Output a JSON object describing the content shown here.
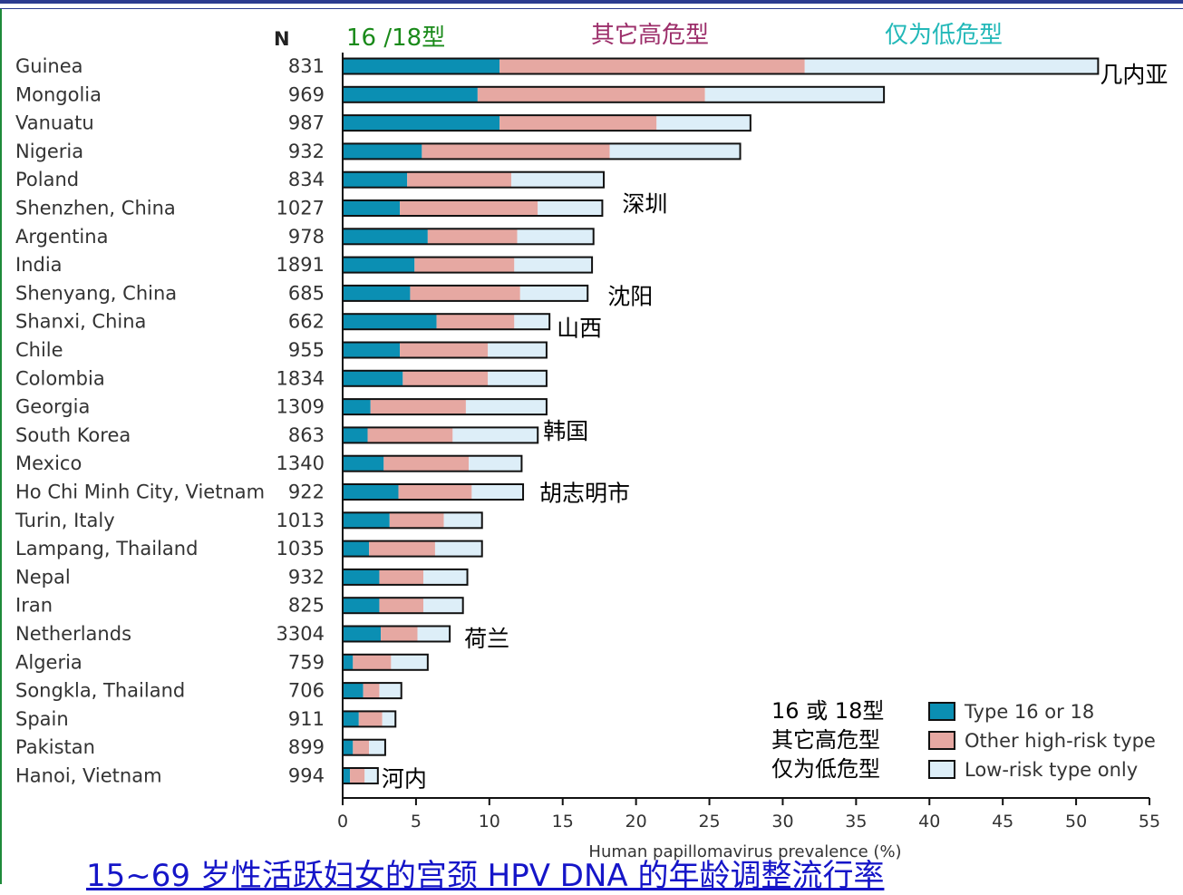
{
  "chart_data": {
    "type": "bar",
    "stacked": true,
    "orientation": "horizontal",
    "xlabel": "Human papillomavirus prevalence (%)",
    "xlim": [
      0,
      55
    ],
    "xticks": [
      0,
      5,
      10,
      15,
      20,
      25,
      30,
      35,
      40,
      45,
      50,
      55
    ],
    "n_header": "N",
    "categories": [
      "Guinea",
      "Mongolia",
      "Vanuatu",
      "Nigeria",
      "Poland",
      "Shenzhen, China",
      "Argentina",
      "India",
      "Shenyang, China",
      "Shanxi, China",
      "Chile",
      "Colombia",
      "Georgia",
      "South Korea",
      "Mexico",
      "Ho Chi Minh City, Vietnam",
      "Turin, Italy",
      "Lampang, Thailand",
      "Nepal",
      "Iran",
      "Netherlands",
      "Algeria",
      "Songkla, Thailand",
      "Spain",
      "Pakistan",
      "Hanoi, Vietnam"
    ],
    "n_values": [
      "831",
      "969",
      "987",
      "932",
      "834",
      "1027",
      "978",
      "1891",
      "685",
      "662",
      "955",
      "1834",
      "1309",
      "863",
      "1340",
      "922",
      "1013",
      "1035",
      "932",
      "825",
      "3304",
      "759",
      "706",
      "911",
      "899",
      "994"
    ],
    "series": [
      {
        "name": "Type 16 or 18",
        "color": "#0b8fb3",
        "values": [
          10.7,
          9.2,
          10.7,
          5.4,
          4.4,
          3.9,
          5.8,
          4.9,
          4.6,
          6.4,
          3.9,
          4.1,
          1.9,
          1.7,
          2.8,
          3.8,
          3.2,
          1.8,
          2.5,
          2.5,
          2.6,
          0.7,
          1.4,
          1.1,
          0.7,
          0.5
        ]
      },
      {
        "name": "Other high-risk type",
        "color": "#e6a8a2",
        "values": [
          20.8,
          15.5,
          10.7,
          12.8,
          7.1,
          9.4,
          6.1,
          6.8,
          7.5,
          5.3,
          6.0,
          5.8,
          6.5,
          5.8,
          5.8,
          5.0,
          3.7,
          4.5,
          3.0,
          3.0,
          2.5,
          2.6,
          1.1,
          1.6,
          1.1,
          1.0
        ]
      },
      {
        "name": "Low-risk type only",
        "color": "#ddeef8",
        "values": [
          20.0,
          12.2,
          6.4,
          8.9,
          6.3,
          4.4,
          5.2,
          5.3,
          4.6,
          2.4,
          4.0,
          4.0,
          5.5,
          5.8,
          3.6,
          3.5,
          2.6,
          3.2,
          3.0,
          2.7,
          2.2,
          2.5,
          1.5,
          0.9,
          1.1,
          0.9
        ]
      }
    ]
  },
  "header_labels": {
    "type1618": "16 /18型",
    "other_high": "其它高危型",
    "low_only": "仅为低危型"
  },
  "annotations": [
    {
      "row": 0,
      "text": "几内亚"
    },
    {
      "row": 5,
      "text": "深圳"
    },
    {
      "row": 8,
      "text": "沈阳"
    },
    {
      "row": 9,
      "text": "山西"
    },
    {
      "row": 13,
      "text": "韩国"
    },
    {
      "row": 15,
      "text": "胡志明市"
    },
    {
      "row": 20,
      "text": "荷兰"
    },
    {
      "row": 25,
      "text": "河内"
    }
  ],
  "legend": {
    "cn": [
      "16 或 18型",
      "其它高危型",
      "仅为低危型"
    ],
    "en": [
      "Type 16 or 18",
      "Other high-risk type",
      "Low-risk type only"
    ]
  },
  "colors": {
    "header1618": "#1a8a1a",
    "header_other": "#9c2e6a",
    "header_low": "#22b8b8",
    "legend_cn1": "#10107a",
    "caption": "#1515c8"
  },
  "caption": "15~69 岁性活跃妇女的宫颈 HPV DNA 的年龄调整流行率"
}
